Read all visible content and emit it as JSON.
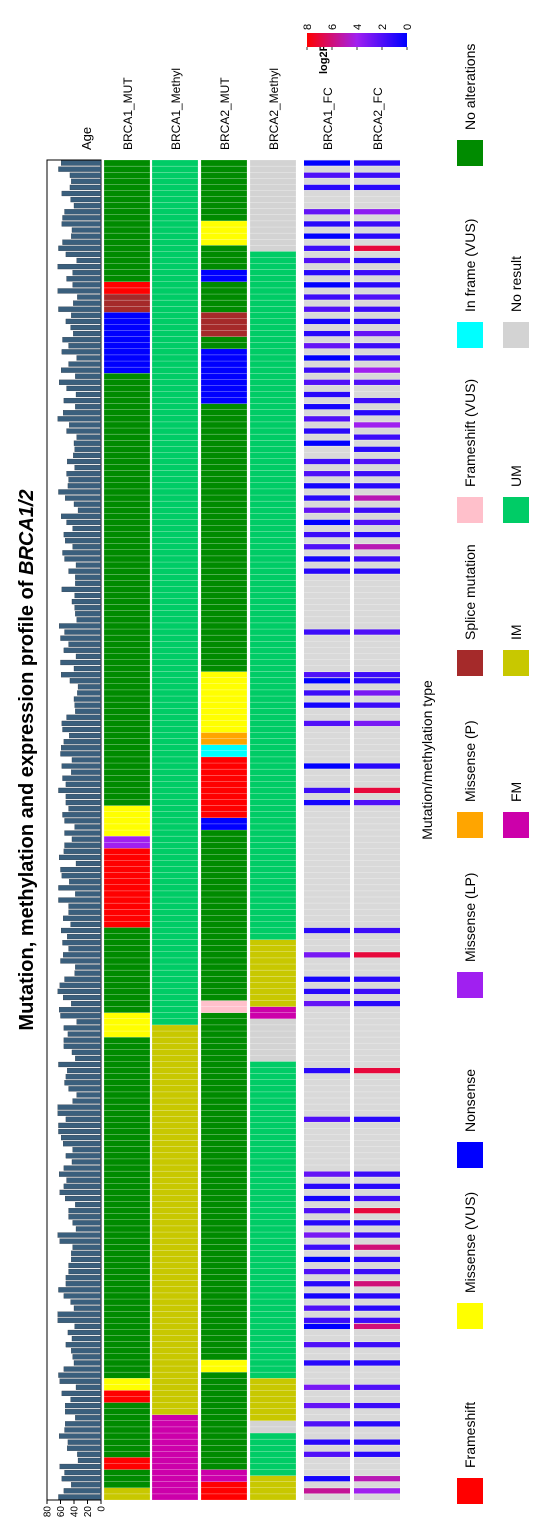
{
  "chart_data": {
    "type": "heatmap",
    "title_prefix": "Mutation, methylation and expression profile of ",
    "title_gene": "BRCA1/2",
    "age_label": "Age",
    "age_ticks": [
      "80",
      "60",
      "40",
      "20",
      "0"
    ],
    "age_range": [
      0,
      80
    ],
    "samples": 220,
    "tracks": [
      "BRCA1_MUT",
      "BRCA1_Methyl",
      "BRCA2_MUT",
      "BRCA2_Methyl",
      "BRCA1_FC",
      "BRCA2_FC"
    ],
    "legend_title": "Mutation/methylation type",
    "legend": [
      {
        "label": "Frameshift",
        "color": "#ff0000"
      },
      {
        "label": "Missense (VUS)",
        "color": "#ffff00"
      },
      {
        "label": "Nonsense",
        "color": "#0000ff"
      },
      {
        "label": "Missense (LP)",
        "color": "#a020f0"
      },
      {
        "label": "Missense (P)",
        "color": "#ffa500"
      },
      {
        "label": "Splice mutation",
        "color": "#a52a2a"
      },
      {
        "label": "Frameshift (VUS)",
        "color": "#ffc0cb"
      },
      {
        "label": "In frame (VUS)",
        "color": "#00ffff"
      },
      {
        "label": "No alterations",
        "color": "#008b00"
      },
      {
        "label": "FM",
        "color": "#cc00aa"
      },
      {
        "label": "IM",
        "color": "#c8c800"
      },
      {
        "label": "UM",
        "color": "#00cc66"
      },
      {
        "label": "No result",
        "color": "#d3d3d3"
      }
    ],
    "colorbar": {
      "title": "log2FC",
      "ticks": [
        "8",
        "6",
        "4",
        "2",
        "0"
      ],
      "range": [
        0,
        8
      ],
      "colors": [
        "#0000ff",
        "#a020f0",
        "#ff0000"
      ]
    },
    "ages": [
      63,
      55,
      44,
      58,
      54,
      61,
      34,
      35,
      50,
      49,
      62,
      54,
      53,
      38,
      53,
      53,
      45,
      58,
      37,
      61,
      63,
      55,
      40,
      42,
      44,
      52,
      43,
      49,
      39,
      64,
      64,
      40,
      45,
      55,
      63,
      52,
      52,
      48,
      48,
      44,
      44,
      42,
      61,
      64,
      37,
      42,
      48,
      48,
      38,
      53,
      61,
      55,
      51,
      62,
      55,
      43,
      52,
      42,
      56,
      59,
      63,
      63,
      52,
      64,
      64,
      42,
      36,
      48,
      54,
      52,
      50,
      63,
      38,
      43,
      55,
      55,
      49,
      55,
      36,
      60,
      62,
      44,
      56,
      64,
      61,
      54,
      39,
      38,
      60,
      56,
      48,
      57,
      50,
      59,
      45,
      56,
      48,
      48,
      63,
      38,
      63,
      47,
      58,
      60,
      37,
      62,
      55,
      54,
      43,
      54,
      39,
      54,
      57,
      48,
      52,
      52,
      63,
      52,
      57,
      44,
      58,
      43,
      60,
      59,
      55,
      47,
      57,
      58,
      51,
      38,
      39,
      40,
      35,
      34,
      46,
      59,
      40,
      60,
      37,
      55,
      48,
      60,
      54,
      62,
      36,
      38,
      39,
      43,
      39,
      58,
      38,
      38,
      48,
      37,
      54,
      57,
      42,
      53,
      55,
      42,
      51,
      59,
      34,
      40,
      53,
      63,
      49,
      48,
      51,
      39,
      50,
      41,
      39,
      40,
      36,
      51,
      47,
      64,
      56,
      38,
      55,
      37,
      51,
      62,
      38,
      59,
      48,
      36,
      58,
      48,
      57,
      41,
      45,
      52,
      44,
      63,
      41,
      35,
      64,
      42,
      51,
      42,
      64,
      36,
      52,
      63,
      57,
      44,
      43,
      58,
      57,
      54,
      40,
      45,
      58,
      46,
      44,
      46,
      63,
      59
    ],
    "BRCA1_MUT": [
      [
        0,
        2,
        "#c8c800"
      ],
      [
        2,
        5,
        "#008b00"
      ],
      [
        5,
        7,
        "#ff0000"
      ],
      [
        7,
        16,
        "#008b00"
      ],
      [
        16,
        18,
        "#ff0000"
      ],
      [
        18,
        20,
        "#ffff00"
      ],
      [
        20,
        76,
        "#008b00"
      ],
      [
        76,
        80,
        "#ffff00"
      ],
      [
        80,
        94,
        "#008b00"
      ],
      [
        94,
        107,
        "#ff0000"
      ],
      [
        107,
        109,
        "#a020f0"
      ],
      [
        109,
        114,
        "#ffff00"
      ],
      [
        114,
        185,
        "#008b00"
      ],
      [
        185,
        195,
        "#0000ff"
      ],
      [
        195,
        198,
        "#a52a2a"
      ],
      [
        198,
        200,
        "#ff0000"
      ],
      [
        200,
        220,
        "#008b00"
      ]
    ],
    "BRCA1_Methyl": [
      [
        0,
        14,
        "#cc00aa"
      ],
      [
        14,
        78,
        "#c8c800"
      ],
      [
        78,
        220,
        "#00cc66"
      ]
    ],
    "BRCA2_MUT": [
      [
        0,
        3,
        "#ff0000"
      ],
      [
        3,
        5,
        "#cc00aa"
      ],
      [
        5,
        21,
        "#008b00"
      ],
      [
        21,
        23,
        "#ffff00"
      ],
      [
        23,
        80,
        "#008b00"
      ],
      [
        80,
        82,
        "#ffc0cb"
      ],
      [
        82,
        110,
        "#008b00"
      ],
      [
        110,
        112,
        "#0000ff"
      ],
      [
        112,
        122,
        "#ff0000"
      ],
      [
        122,
        124,
        "#00ffff"
      ],
      [
        124,
        126,
        "#ffa500"
      ],
      [
        126,
        136,
        "#ffff00"
      ],
      [
        136,
        180,
        "#008b00"
      ],
      [
        180,
        189,
        "#0000ff"
      ],
      [
        189,
        191,
        "#008b00"
      ],
      [
        191,
        195,
        "#a52a2a"
      ],
      [
        195,
        200,
        "#008b00"
      ],
      [
        200,
        202,
        "#0000ff"
      ],
      [
        202,
        206,
        "#008b00"
      ],
      [
        206,
        210,
        "#ffff00"
      ],
      [
        210,
        220,
        "#008b00"
      ]
    ],
    "BRCA2_Methyl": [
      [
        0,
        4,
        "#c8c800"
      ],
      [
        4,
        11,
        "#00cc66"
      ],
      [
        11,
        13,
        "#d3d3d3"
      ],
      [
        13,
        20,
        "#c8c800"
      ],
      [
        20,
        72,
        "#00cc66"
      ],
      [
        72,
        79,
        "#d3d3d3"
      ],
      [
        79,
        81,
        "#cc00aa"
      ],
      [
        81,
        92,
        "#c8c800"
      ],
      [
        92,
        205,
        "#00cc66"
      ],
      [
        205,
        220,
        "#d3d3d3"
      ]
    ],
    "BRCA1_FC": [
      [
        1,
        5.5
      ],
      [
        3,
        0.5
      ],
      [
        7,
        2
      ],
      [
        9,
        1
      ],
      [
        12,
        2
      ],
      [
        15,
        2.5
      ],
      [
        18,
        3
      ],
      [
        22,
        1
      ],
      [
        25,
        2
      ],
      [
        28,
        0
      ],
      [
        29,
        1.5
      ],
      [
        31,
        2
      ],
      [
        33,
        0.5
      ],
      [
        35,
        1
      ],
      [
        37,
        2
      ],
      [
        39,
        0
      ],
      [
        41,
        1.5
      ],
      [
        43,
        3
      ],
      [
        45,
        1
      ],
      [
        47,
        2
      ],
      [
        49,
        0.5
      ],
      [
        51,
        1
      ],
      [
        53,
        2.5
      ],
      [
        62,
        2
      ],
      [
        70,
        1
      ],
      [
        81,
        2.5
      ],
      [
        83,
        1
      ],
      [
        85,
        0.5
      ],
      [
        89,
        3
      ],
      [
        93,
        1
      ],
      [
        114,
        0.5
      ],
      [
        116,
        1.5
      ],
      [
        120,
        0
      ],
      [
        127,
        2
      ],
      [
        130,
        0.5
      ],
      [
        132,
        1.5
      ],
      [
        134,
        0
      ],
      [
        135,
        2
      ],
      [
        142,
        1.5
      ],
      [
        152,
        1
      ],
      [
        154,
        0.5
      ],
      [
        156,
        2
      ],
      [
        158,
        1.5
      ],
      [
        160,
        0
      ],
      [
        162,
        2.5
      ],
      [
        164,
        1
      ],
      [
        166,
        0.5
      ],
      [
        168,
        2
      ],
      [
        170,
        1.5
      ],
      [
        173,
        0
      ],
      [
        175,
        1
      ],
      [
        177,
        2
      ],
      [
        179,
        0.5
      ],
      [
        181,
        1
      ],
      [
        183,
        2
      ],
      [
        185,
        1.5
      ],
      [
        187,
        0
      ],
      [
        189,
        2.5
      ],
      [
        191,
        1
      ],
      [
        193,
        0.5
      ],
      [
        195,
        2
      ],
      [
        197,
        1.5
      ],
      [
        199,
        0
      ],
      [
        201,
        1
      ],
      [
        203,
        2
      ],
      [
        205,
        1.5
      ],
      [
        207,
        0
      ],
      [
        209,
        1
      ],
      [
        211,
        2.5
      ],
      [
        215,
        1
      ],
      [
        217,
        2
      ],
      [
        219,
        0
      ]
    ],
    "BRCA2_FC": [
      [
        1,
        4
      ],
      [
        3,
        5
      ],
      [
        7,
        1
      ],
      [
        9,
        1
      ],
      [
        12,
        1
      ],
      [
        15,
        1.5
      ],
      [
        18,
        2
      ],
      [
        22,
        1
      ],
      [
        25,
        1.5
      ],
      [
        28,
        6
      ],
      [
        29,
        1.5
      ],
      [
        31,
        1
      ],
      [
        33,
        1
      ],
      [
        35,
        6
      ],
      [
        37,
        1.5
      ],
      [
        39,
        1
      ],
      [
        41,
        6
      ],
      [
        43,
        1.5
      ],
      [
        45,
        1
      ],
      [
        47,
        7
      ],
      [
        49,
        1.5
      ],
      [
        51,
        1
      ],
      [
        53,
        1.5
      ],
      [
        62,
        1
      ],
      [
        70,
        7
      ],
      [
        81,
        1
      ],
      [
        83,
        1.5
      ],
      [
        85,
        1
      ],
      [
        89,
        7
      ],
      [
        93,
        1.5
      ],
      [
        114,
        2
      ],
      [
        116,
        7
      ],
      [
        120,
        1
      ],
      [
        127,
        3
      ],
      [
        130,
        1.5
      ],
      [
        132,
        3
      ],
      [
        134,
        1
      ],
      [
        135,
        1.5
      ],
      [
        142,
        2
      ],
      [
        152,
        1
      ],
      [
        154,
        1.5
      ],
      [
        156,
        5
      ],
      [
        158,
        1
      ],
      [
        160,
        2
      ],
      [
        162,
        1.5
      ],
      [
        164,
        5
      ],
      [
        166,
        1
      ],
      [
        168,
        1.5
      ],
      [
        170,
        2
      ],
      [
        172,
        1
      ],
      [
        174,
        1.5
      ],
      [
        176,
        4
      ],
      [
        178,
        1
      ],
      [
        180,
        1.5
      ],
      [
        183,
        2
      ],
      [
        185,
        4
      ],
      [
        187,
        1
      ],
      [
        189,
        1.5
      ],
      [
        191,
        2.5
      ],
      [
        193,
        1
      ],
      [
        195,
        1.5
      ],
      [
        197,
        2
      ],
      [
        199,
        1
      ],
      [
        201,
        1.5
      ],
      [
        203,
        1
      ],
      [
        205,
        7
      ],
      [
        207,
        1
      ],
      [
        209,
        1.5
      ],
      [
        211,
        3.5
      ],
      [
        215,
        1
      ],
      [
        217,
        1.5
      ],
      [
        219,
        1
      ]
    ]
  }
}
